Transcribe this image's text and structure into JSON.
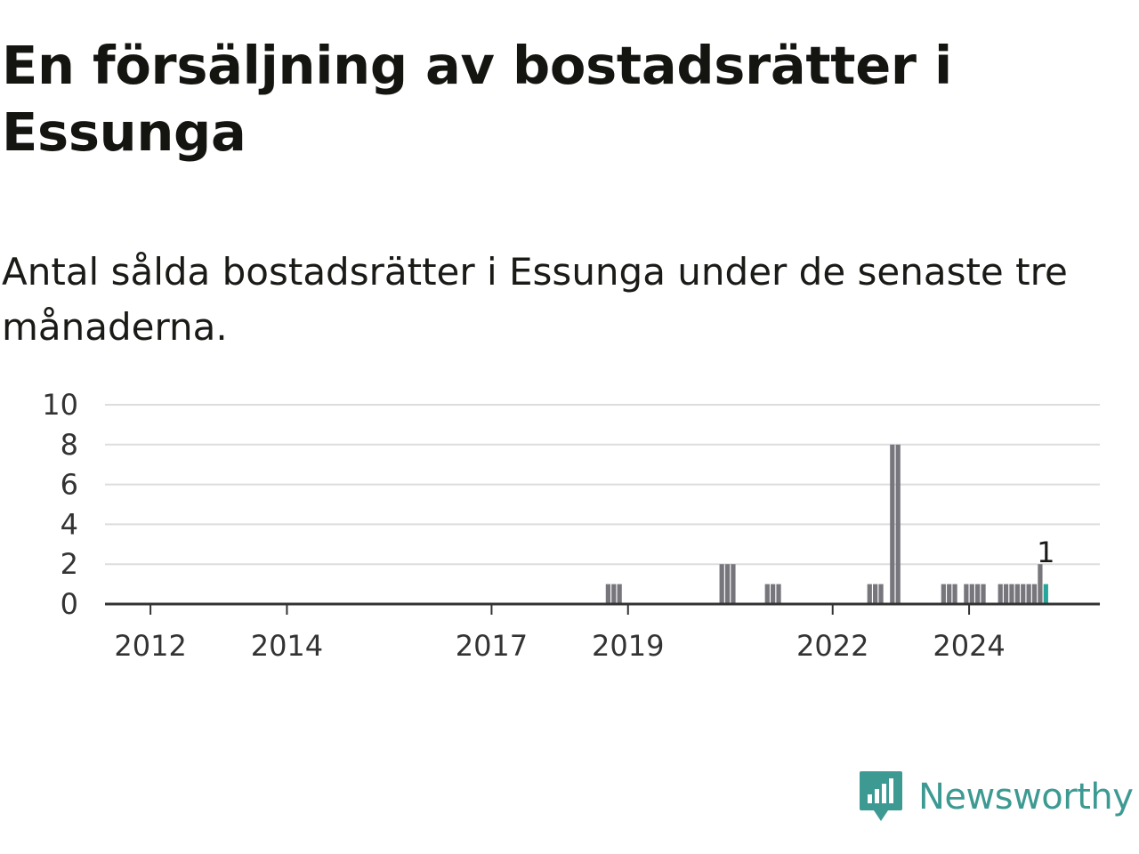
{
  "header": {
    "title": "En försäljning av bostadsrätter i Essunga",
    "subtitle": "Antal sålda bostadsrätter i Essunga under de senaste tre månaderna."
  },
  "brand": {
    "name": "Newsworthy",
    "icon": "newsworthy-logo-icon",
    "color": "#3d9a93"
  },
  "chart_data": {
    "type": "bar",
    "title": "En försäljning av bostadsrätter i Essunga",
    "subtitle": "Antal sålda bostadsrätter i Essunga under de senaste tre månaderna.",
    "xlabel": "",
    "ylabel": "",
    "ylim": [
      0,
      10
    ],
    "y_ticks": [
      0,
      2,
      4,
      6,
      8,
      10
    ],
    "x_ticks": [
      "2012",
      "2014",
      "2017",
      "2019",
      "2022",
      "2024"
    ],
    "x_range": [
      "2011-05",
      "2025-12"
    ],
    "grid": true,
    "legend": "none",
    "colors": {
      "bar": "#77767c",
      "highlight": "#26a69a",
      "grid": "#dddddd",
      "axis": "#333333"
    },
    "categories": [
      "2018-09",
      "2018-10",
      "2018-11",
      "2020-05",
      "2020-06",
      "2020-07",
      "2021-01",
      "2021-02",
      "2021-03",
      "2022-07",
      "2022-08",
      "2022-09",
      "2022-11",
      "2022-12",
      "2023-08",
      "2023-09",
      "2023-10",
      "2023-12",
      "2024-01",
      "2024-02",
      "2024-03",
      "2024-06",
      "2024-07",
      "2024-08",
      "2024-09",
      "2024-10",
      "2024-11",
      "2024-12",
      "2025-01",
      "2025-02"
    ],
    "values": [
      1,
      1,
      1,
      2,
      2,
      2,
      1,
      1,
      1,
      1,
      1,
      1,
      8,
      8,
      1,
      1,
      1,
      1,
      1,
      1,
      1,
      1,
      1,
      1,
      1,
      1,
      1,
      1,
      2,
      1
    ],
    "highlight_index": 29,
    "highlight_label": "1"
  }
}
